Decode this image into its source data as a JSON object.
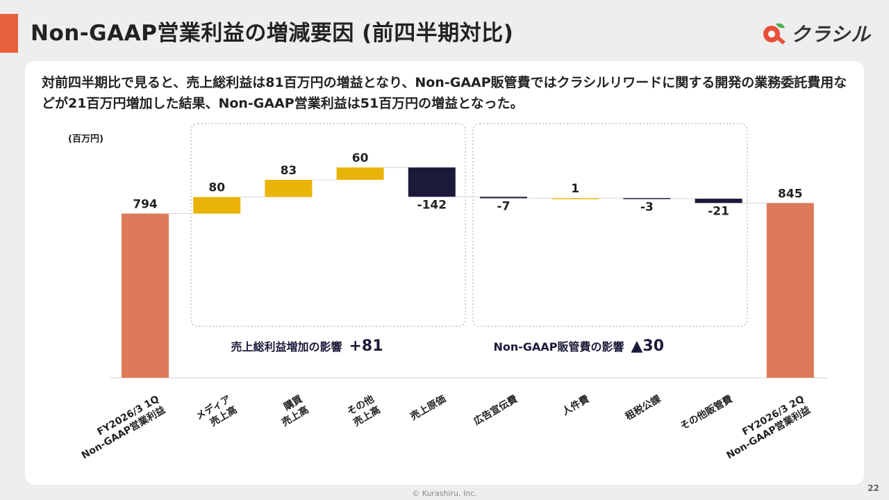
{
  "slide": {
    "title": "Non-GAAP営業利益の増減要因 (前四半期対比)",
    "summary": "対前四半期比で見ると、売上総利益は81百万円の増益となり、Non-GAAP販管費ではクラシルリワードに関する開発の業務委託費用などが21百万円増加した結果、Non-GAAP営業利益は51百万円の増益となった。",
    "footer": "© Kurashiru, Inc.",
    "page_number": "22"
  },
  "brand": {
    "name": "クラシル",
    "icon": "kurashiru-logo-icon",
    "colors": {
      "red": "#e8503a",
      "green": "#4caf50"
    }
  },
  "colors": {
    "accent": "#e8603c",
    "total_bar": "#dd7a5a",
    "increase_bar": "#eab308",
    "decrease_bar": "#1b1a3a"
  },
  "chart_data": {
    "type": "bar",
    "subtype": "waterfall",
    "unit_label": "(百万円)",
    "categories": [
      "FY2026/3 1Q\nNon-GAAP営業利益",
      "メディア\n売上高",
      "購買\n売上高",
      "その他\n売上高",
      "売上原価",
      "広告宣伝費",
      "人件費",
      "租税公課",
      "その他販管費",
      "FY2026/3 2Q\nNon-GAAP営業利益"
    ],
    "values": [
      794,
      80,
      83,
      60,
      -142,
      -7,
      1,
      -3,
      -21,
      845
    ],
    "data_labels": [
      "794",
      "80",
      "83",
      "60",
      "-142",
      "-7",
      "1",
      "-3",
      "-21",
      "845"
    ],
    "measures": [
      "absolute",
      "relative",
      "relative",
      "relative",
      "relative",
      "relative",
      "relative",
      "relative",
      "relative",
      "total"
    ],
    "groups": [
      {
        "label": "売上総利益増加の影響",
        "value": "+81",
        "members": [
          1,
          2,
          3,
          4
        ]
      },
      {
        "label": "Non-GAAP販管費の影響",
        "value": "▲30",
        "members": [
          5,
          6,
          7,
          8
        ]
      }
    ],
    "ylim": [
      0,
      1000
    ],
    "grid": false,
    "legend": "none"
  }
}
